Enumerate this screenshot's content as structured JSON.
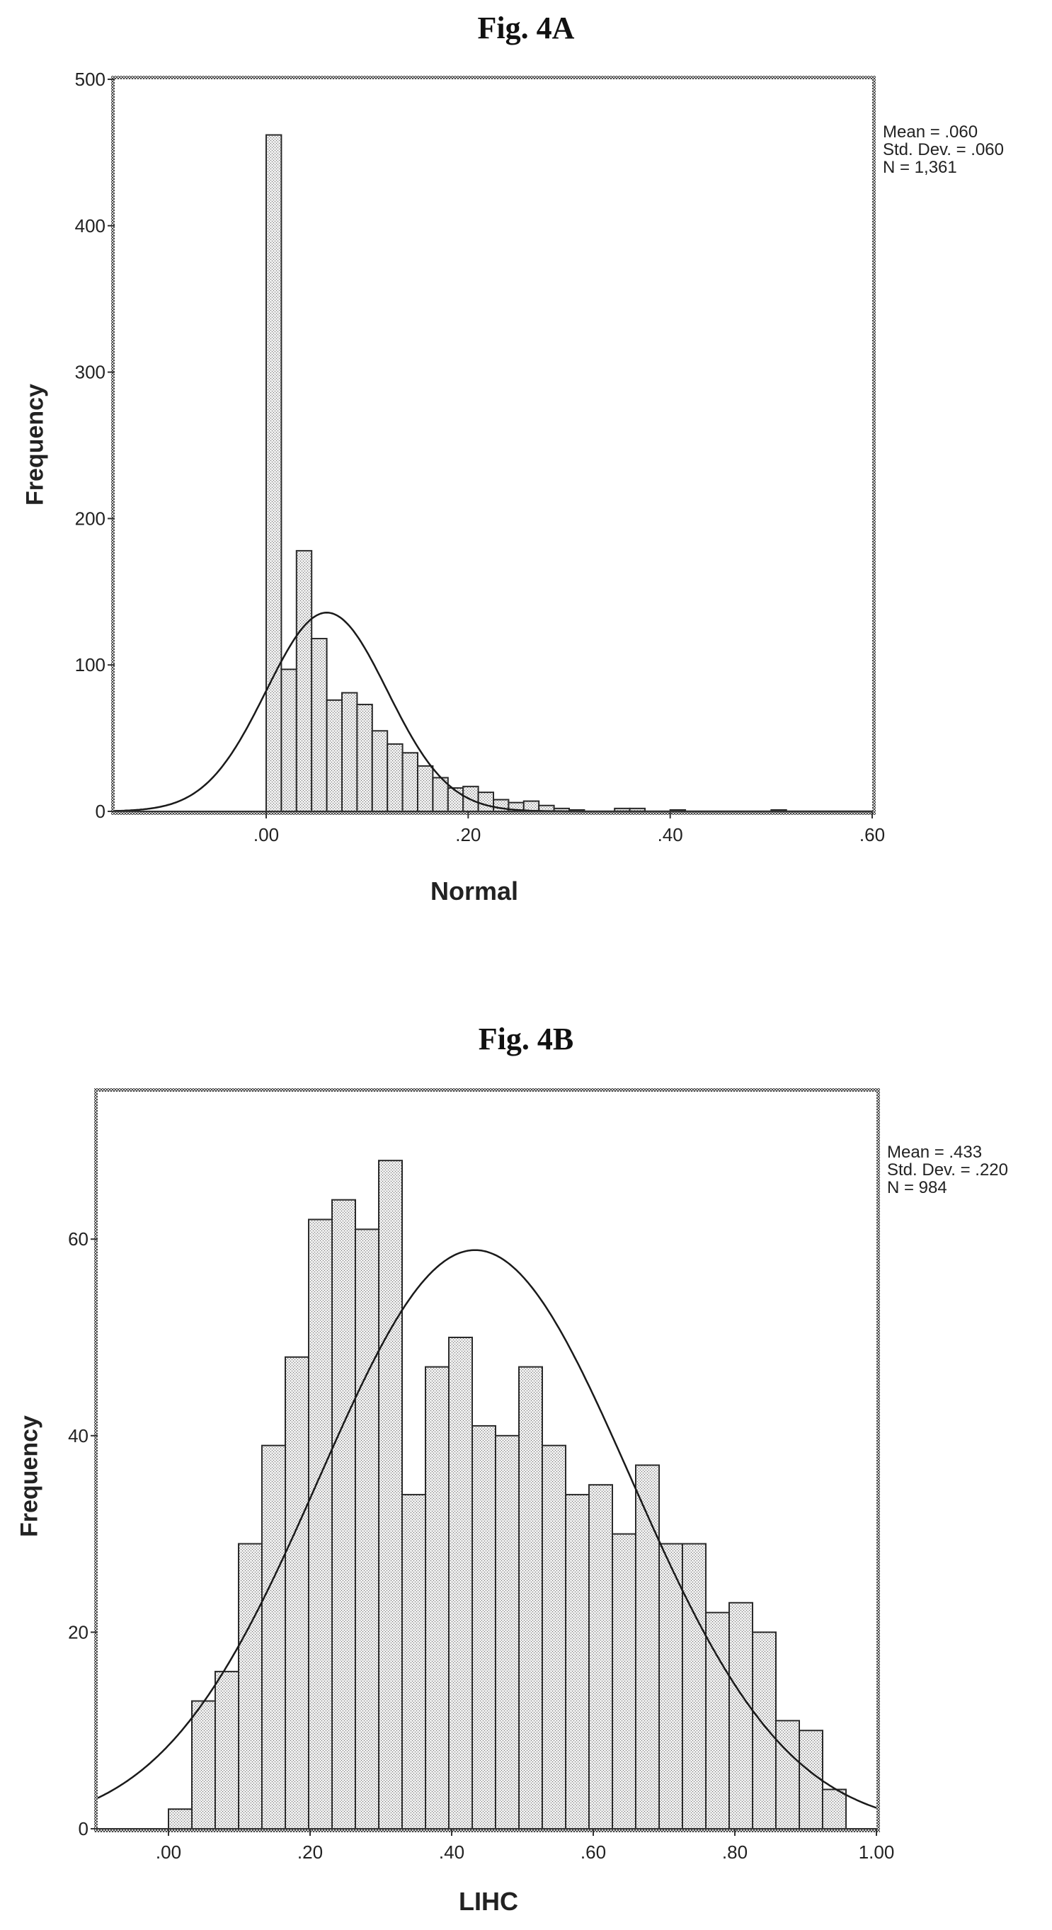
{
  "chart_data": [
    {
      "type": "bar",
      "title": "Fig. 4A",
      "xlabel": "Normal",
      "ylabel": "Frequency",
      "stats": [
        "Mean = .060",
        "Std. Dev. = .060",
        "N = 1,361"
      ],
      "xlim": [
        -0.15,
        0.6
      ],
      "ylim": [
        0,
        500
      ],
      "xticks": [
        0.0,
        0.2,
        0.4,
        0.6
      ],
      "xtick_labels": [
        ".00",
        ".20",
        ".40",
        ".60"
      ],
      "yticks": [
        0,
        100,
        200,
        300,
        400,
        500
      ],
      "ytick_labels": [
        "0",
        "100",
        "200",
        "300",
        "400",
        "500"
      ],
      "bin_width": 0.015,
      "bin_starts": [
        0.0,
        0.015,
        0.03,
        0.045,
        0.06,
        0.075,
        0.09,
        0.105,
        0.12,
        0.135,
        0.15,
        0.165,
        0.18,
        0.195,
        0.21,
        0.225,
        0.24,
        0.255,
        0.27,
        0.285,
        0.3,
        0.345,
        0.36,
        0.4,
        0.5
      ],
      "values": [
        462,
        97,
        178,
        118,
        76,
        81,
        73,
        55,
        46,
        40,
        31,
        23,
        16,
        17,
        13,
        8,
        6,
        7,
        4,
        2,
        1,
        2,
        2,
        1,
        1
      ],
      "normal_curve": {
        "mean": 0.06,
        "sd": 0.06,
        "n": 1361
      }
    },
    {
      "type": "bar",
      "title": "Fig. 4B",
      "xlabel": "LIHC",
      "ylabel": "Frequency",
      "stats": [
        "Mean = .433",
        "Std. Dev. = .220",
        "N = 984"
      ],
      "xlim": [
        -0.1,
        1.0
      ],
      "ylim": [
        0,
        75
      ],
      "xticks": [
        0.0,
        0.2,
        0.4,
        0.6,
        0.8,
        1.0
      ],
      "xtick_labels": [
        ".00",
        ".20",
        ".40",
        ".60",
        ".80",
        "1.00"
      ],
      "yticks": [
        0,
        20,
        40,
        60
      ],
      "ytick_labels": [
        "0",
        "20",
        "40",
        "60"
      ],
      "bin_width": 0.033,
      "bin_starts": [
        0.0,
        0.033,
        0.066,
        0.099,
        0.132,
        0.165,
        0.198,
        0.231,
        0.264,
        0.297,
        0.33,
        0.363,
        0.396,
        0.429,
        0.462,
        0.495,
        0.528,
        0.561,
        0.594,
        0.627,
        0.66,
        0.693,
        0.726,
        0.759,
        0.792,
        0.825,
        0.858,
        0.891,
        0.924,
        0.957
      ],
      "values": [
        2,
        13,
        16,
        29,
        39,
        48,
        62,
        64,
        61,
        68,
        34,
        47,
        50,
        41,
        40,
        47,
        39,
        34,
        35,
        30,
        37,
        29,
        29,
        22,
        23,
        20,
        11,
        10,
        4,
        0
      ],
      "normal_curve": {
        "mean": 0.433,
        "sd": 0.22,
        "n": 984
      }
    }
  ]
}
